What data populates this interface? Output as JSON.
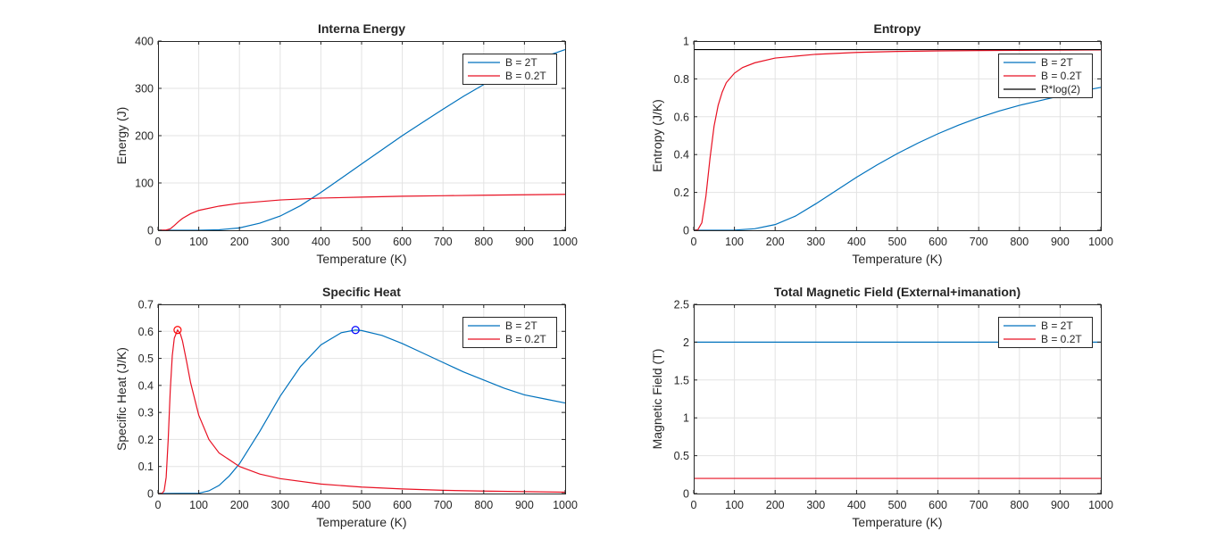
{
  "colors": {
    "blue": "#0072BD",
    "red": "#E81123",
    "black": "#000000",
    "marker_blue": "#0000FF",
    "marker_red": "#FF0000"
  },
  "chart_data": [
    {
      "type": "line",
      "title": "Interna Energy",
      "xlabel": "Temperature (K)",
      "ylabel": "Energy (J)",
      "xlim": [
        0,
        1000
      ],
      "ylim": [
        0,
        400
      ],
      "xticks": [
        0,
        100,
        200,
        300,
        400,
        500,
        600,
        700,
        800,
        900,
        1000
      ],
      "yticks": [
        0,
        100,
        200,
        300,
        400
      ],
      "grid": true,
      "legend_location": "top-right",
      "series": [
        {
          "name": "B = 2T",
          "color": "blue",
          "x": [
            0,
            100,
            150,
            200,
            250,
            300,
            350,
            400,
            450,
            500,
            550,
            600,
            650,
            700,
            750,
            800,
            850,
            900,
            950,
            1000
          ],
          "y": [
            0,
            0.1,
            1,
            5,
            15,
            30,
            52,
            80,
            110,
            140,
            170,
            200,
            228,
            256,
            283,
            308,
            330,
            350,
            367,
            382
          ]
        },
        {
          "name": "B = 0.2T",
          "color": "red",
          "x": [
            0,
            20,
            30,
            40,
            50,
            60,
            80,
            100,
            150,
            200,
            300,
            400,
            500,
            600,
            700,
            800,
            900,
            1000
          ],
          "y": [
            0,
            0.5,
            3,
            10,
            18,
            25,
            35,
            42,
            51,
            57,
            64,
            68,
            70,
            72,
            73,
            74,
            75,
            76
          ]
        }
      ]
    },
    {
      "type": "line",
      "title": "Entropy",
      "xlabel": "Temperature (K)",
      "ylabel": "Entropy (J/K)",
      "xlim": [
        0,
        1000
      ],
      "ylim": [
        0,
        1
      ],
      "xticks": [
        0,
        100,
        200,
        300,
        400,
        500,
        600,
        700,
        800,
        900,
        1000
      ],
      "yticks": [
        0,
        0.2,
        0.4,
        0.6,
        0.8,
        1
      ],
      "grid": true,
      "legend_location": "top-right",
      "series": [
        {
          "name": "B = 2T",
          "color": "blue",
          "x": [
            0,
            100,
            150,
            200,
            250,
            300,
            350,
            400,
            450,
            500,
            550,
            600,
            650,
            700,
            750,
            800,
            850,
            900,
            950,
            1000
          ],
          "y": [
            0,
            0.001,
            0.008,
            0.03,
            0.075,
            0.14,
            0.21,
            0.28,
            0.345,
            0.405,
            0.46,
            0.51,
            0.555,
            0.595,
            0.63,
            0.66,
            0.685,
            0.71,
            0.735,
            0.755
          ]
        },
        {
          "name": "B = 0.2T",
          "color": "red",
          "x": [
            0,
            10,
            20,
            30,
            40,
            50,
            60,
            70,
            80,
            100,
            120,
            150,
            200,
            300,
            400,
            500,
            600,
            700,
            800,
            900,
            1000
          ],
          "y": [
            0,
            0.002,
            0.04,
            0.18,
            0.38,
            0.55,
            0.66,
            0.73,
            0.78,
            0.83,
            0.86,
            0.885,
            0.91,
            0.93,
            0.94,
            0.945,
            0.948,
            0.95,
            0.951,
            0.952,
            0.953
          ]
        },
        {
          "name": "R*log(2)",
          "color": "black",
          "x": [
            0,
            1000
          ],
          "y": [
            0.955,
            0.955
          ]
        }
      ]
    },
    {
      "type": "line",
      "title": "Specific Heat",
      "xlabel": "Temperature (K)",
      "ylabel": "Specific Heat (J/K)",
      "xlim": [
        0,
        1000
      ],
      "ylim": [
        0,
        0.7
      ],
      "xticks": [
        0,
        100,
        200,
        300,
        400,
        500,
        600,
        700,
        800,
        900,
        1000
      ],
      "yticks": [
        0,
        0.1,
        0.2,
        0.3,
        0.4,
        0.5,
        0.6,
        0.7
      ],
      "grid": true,
      "legend_location": "top-right",
      "series": [
        {
          "name": "B = 2T",
          "color": "blue",
          "x": [
            0,
            100,
            125,
            150,
            175,
            200,
            250,
            300,
            350,
            400,
            450,
            485,
            500,
            550,
            600,
            650,
            700,
            750,
            800,
            850,
            900,
            950,
            1000
          ],
          "y": [
            0,
            0.001,
            0.01,
            0.03,
            0.065,
            0.11,
            0.23,
            0.36,
            0.47,
            0.55,
            0.595,
            0.605,
            0.603,
            0.585,
            0.555,
            0.52,
            0.485,
            0.45,
            0.42,
            0.39,
            0.365,
            0.35,
            0.335
          ]
        },
        {
          "name": "B = 0.2T",
          "color": "red",
          "x": [
            0,
            10,
            15,
            20,
            25,
            30,
            35,
            40,
            48,
            55,
            60,
            70,
            80,
            100,
            125,
            150,
            200,
            250,
            300,
            400,
            500,
            600,
            700,
            800,
            900,
            1000
          ],
          "y": [
            0,
            0.001,
            0.01,
            0.06,
            0.2,
            0.38,
            0.51,
            0.575,
            0.605,
            0.59,
            0.565,
            0.49,
            0.41,
            0.29,
            0.2,
            0.15,
            0.1,
            0.072,
            0.055,
            0.035,
            0.024,
            0.017,
            0.012,
            0.009,
            0.007,
            0.005
          ]
        }
      ],
      "markers": [
        {
          "series": "B = 2T",
          "color": "marker_blue",
          "x": 485,
          "y": 0.605
        },
        {
          "series": "B = 0.2T",
          "color": "marker_red",
          "x": 48,
          "y": 0.605
        }
      ]
    },
    {
      "type": "line",
      "title": "Total Magnetic Field (External+imanation)",
      "xlabel": "Temperature (K)",
      "ylabel": "Magnetic Field (T)",
      "xlim": [
        0,
        1000
      ],
      "ylim": [
        0,
        2.5
      ],
      "xticks": [
        0,
        100,
        200,
        300,
        400,
        500,
        600,
        700,
        800,
        900,
        1000
      ],
      "yticks": [
        0,
        0.5,
        1,
        1.5,
        2,
        2.5
      ],
      "grid": true,
      "legend_location": "top-right",
      "series": [
        {
          "name": "B = 2T",
          "color": "blue",
          "x": [
            0,
            1000
          ],
          "y": [
            2,
            2
          ]
        },
        {
          "name": "B = 0.2T",
          "color": "red",
          "x": [
            0,
            1000
          ],
          "y": [
            0.2,
            0.2
          ]
        }
      ]
    }
  ]
}
